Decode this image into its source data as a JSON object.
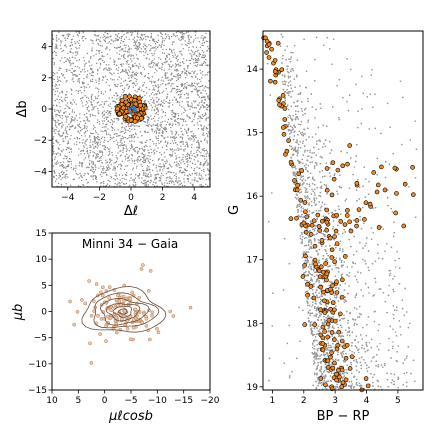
{
  "chart_data": [
    {
      "id": "spatial",
      "type": "scatter",
      "title": "",
      "xlabel": "Δℓ",
      "ylabel": "Δb",
      "xlim": [
        -5,
        5
      ],
      "ylim": [
        -5,
        5
      ],
      "xticks": [
        -4,
        -2,
        0,
        2,
        4
      ],
      "xtick_labels": [
        "−4",
        "−2",
        "0",
        "2",
        "4"
      ],
      "yticks": [
        -4,
        -2,
        0,
        2,
        4
      ],
      "ytick_labels": [
        "−4",
        "−2",
        "0",
        "2",
        "4"
      ],
      "grid": false,
      "series": [
        {
          "role": "field",
          "color": "#8a8a8a",
          "count_hint": 3200,
          "marker": "dot"
        },
        {
          "role": "members",
          "color": "#f08a24",
          "edge": "#000000",
          "center": [
            0.0,
            0.0
          ],
          "radius": 0.9
        }
      ]
    },
    {
      "id": "proper_motion",
      "type": "scatter",
      "title": "Minni 34  −  Gaia",
      "xlabel": "μℓcosb",
      "ylabel": "μb",
      "xlim": [
        10,
        -20
      ],
      "ylim": [
        -15,
        15
      ],
      "xticks": [
        10,
        5,
        0,
        -5,
        -10,
        -15,
        -20
      ],
      "xtick_labels": [
        "10",
        "5",
        "0",
        "−5",
        "−10",
        "−15",
        "−20"
      ],
      "yticks": [
        -15,
        -10,
        -5,
        0,
        5,
        10,
        15
      ],
      "ytick_labels": [
        "−15",
        "−10",
        "−5",
        "0",
        "5",
        "10",
        "15"
      ],
      "grid": false,
      "contour_center": [
        -3.5,
        0.0
      ],
      "contour_color": "#6b4e3d",
      "series": [
        {
          "role": "stars",
          "color": "#f3c7a0",
          "edge": "#9a6a4a",
          "center": [
            -3.5,
            0.0
          ]
        }
      ]
    },
    {
      "id": "cmd",
      "type": "scatter",
      "title": "",
      "xlabel": "BP − RP",
      "ylabel": "G",
      "xlim": [
        0.7,
        5.8
      ],
      "ylim": [
        19.05,
        13.4
      ],
      "xticks": [
        1,
        2,
        3,
        4,
        5
      ],
      "xtick_labels": [
        "1",
        "2",
        "3",
        "4",
        "5"
      ],
      "yticks": [
        14,
        15,
        16,
        17,
        18,
        19
      ],
      "ytick_labels": [
        "14",
        "15",
        "16",
        "17",
        "18",
        "19"
      ],
      "grid": false,
      "series": [
        {
          "role": "field",
          "color": "#9a9a9a",
          "marker": "dot"
        },
        {
          "role": "members",
          "color": "#f08a24",
          "edge": "#000000"
        }
      ]
    }
  ]
}
